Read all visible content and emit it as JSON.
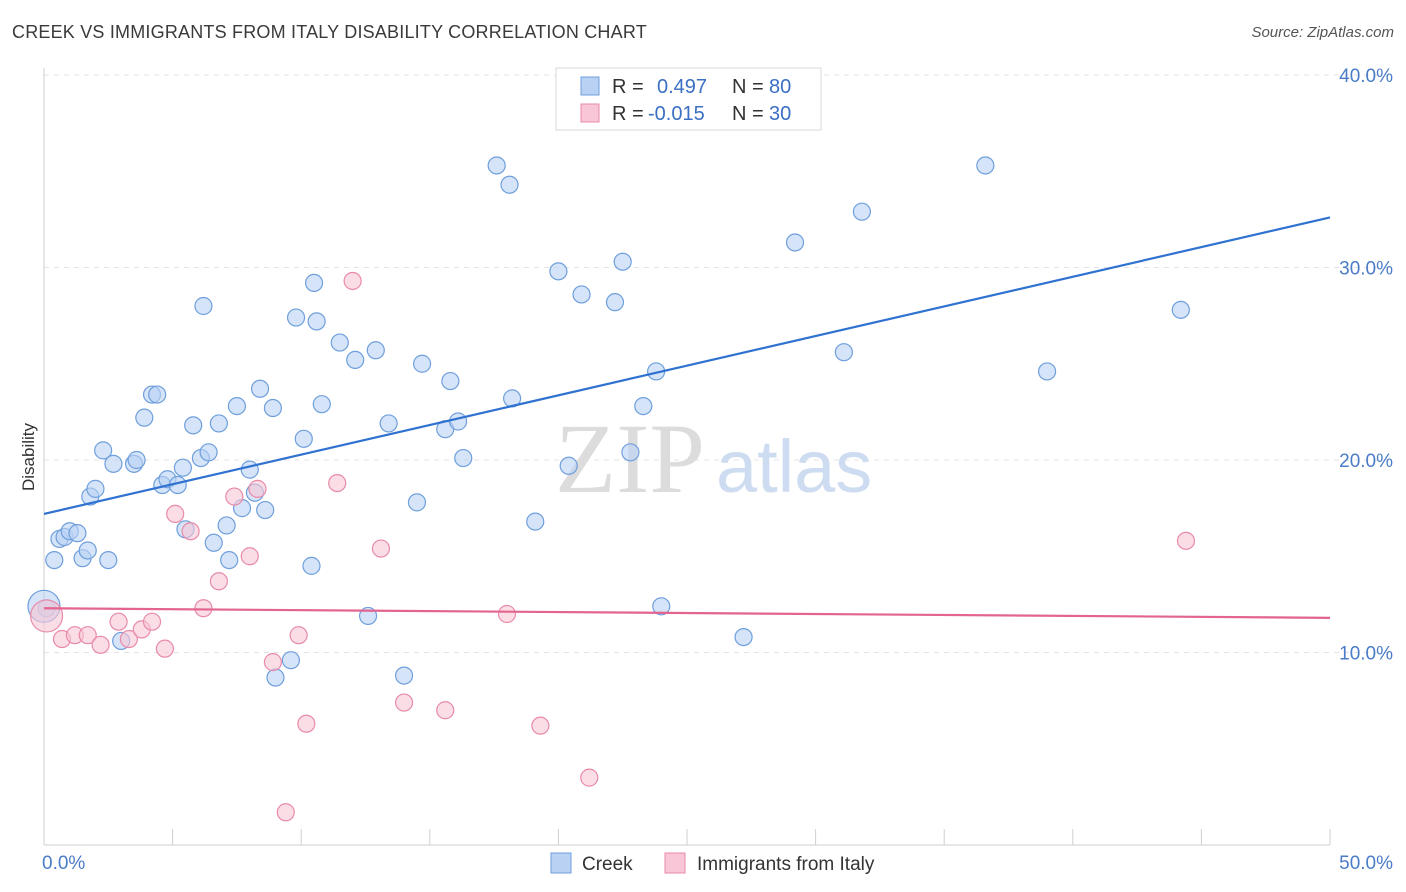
{
  "header": {
    "title": "CREEK VS IMMIGRANTS FROM ITALY DISABILITY CORRELATION CHART",
    "source": "Source: ZipAtlas.com"
  },
  "watermark": {
    "zip": "ZIP",
    "atlas": "atlas"
  },
  "colors": {
    "creek_fill": "#b9d2f3",
    "creek_stroke": "#6f9fdc",
    "creek_line": "#2f72d0",
    "italy_fill": "#f8c6d6",
    "italy_stroke": "#e88aaa",
    "italy_line": "#e2648f",
    "tick": "#4a7cc7"
  },
  "legend": {
    "rows": [
      {
        "r_label": "R =",
        "r_value": "0.497",
        "n_label": "N =",
        "n_value": "80"
      },
      {
        "r_label": "R =",
        "r_value": "-0.015",
        "n_label": "N =",
        "n_value": "30"
      }
    ]
  },
  "chart_data": {
    "type": "scatter",
    "title": "CREEK VS IMMIGRANTS FROM ITALY DISABILITY CORRELATION CHART",
    "ylabel": "Disability",
    "xlabel": "",
    "xlim": [
      0,
      50
    ],
    "ylim": [
      0,
      40
    ],
    "x_ticks": [
      "0.0%",
      "50.0%"
    ],
    "y_ticks": [
      {
        "value": 10,
        "label": "10.0%"
      },
      {
        "value": 20,
        "label": "20.0%"
      },
      {
        "value": 30,
        "label": "30.0%"
      },
      {
        "value": 40,
        "label": "40.0%"
      }
    ],
    "grid": "horizontal dashed",
    "legend_position": "top-center",
    "series": [
      {
        "name": "Creek",
        "trend": {
          "x": [
            0,
            50
          ],
          "y": [
            17.2,
            32.6
          ]
        },
        "points": [
          [
            0.1,
            12.3
          ],
          [
            0.4,
            14.8
          ],
          [
            0.6,
            15.9
          ],
          [
            0.8,
            16.0
          ],
          [
            1.0,
            16.3
          ],
          [
            1.3,
            16.2
          ],
          [
            1.5,
            14.9
          ],
          [
            1.7,
            15.3
          ],
          [
            1.8,
            18.1
          ],
          [
            2.0,
            18.5
          ],
          [
            2.3,
            20.5
          ],
          [
            2.5,
            14.8
          ],
          [
            2.7,
            19.8
          ],
          [
            3.0,
            10.6
          ],
          [
            3.5,
            19.8
          ],
          [
            3.6,
            20.0
          ],
          [
            3.9,
            22.2
          ],
          [
            4.2,
            23.4
          ],
          [
            4.4,
            23.4
          ],
          [
            4.6,
            18.7
          ],
          [
            4.8,
            19.0
          ],
          [
            5.2,
            18.7
          ],
          [
            5.4,
            19.6
          ],
          [
            5.5,
            16.4
          ],
          [
            5.8,
            21.8
          ],
          [
            6.1,
            20.1
          ],
          [
            6.2,
            28.0
          ],
          [
            6.4,
            20.4
          ],
          [
            6.6,
            15.7
          ],
          [
            6.8,
            21.9
          ],
          [
            7.1,
            16.6
          ],
          [
            7.2,
            14.8
          ],
          [
            7.5,
            22.8
          ],
          [
            7.7,
            17.5
          ],
          [
            8.0,
            19.5
          ],
          [
            8.2,
            18.3
          ],
          [
            8.4,
            23.7
          ],
          [
            8.6,
            17.4
          ],
          [
            8.9,
            22.7
          ],
          [
            9.0,
            8.7
          ],
          [
            9.6,
            9.6
          ],
          [
            9.8,
            27.4
          ],
          [
            10.1,
            21.1
          ],
          [
            10.4,
            14.5
          ],
          [
            10.5,
            29.2
          ],
          [
            10.6,
            27.2
          ],
          [
            10.8,
            22.9
          ],
          [
            11.5,
            26.1
          ],
          [
            12.1,
            25.2
          ],
          [
            12.6,
            11.9
          ],
          [
            12.9,
            25.7
          ],
          [
            13.4,
            21.9
          ],
          [
            14.0,
            8.8
          ],
          [
            14.5,
            17.8
          ],
          [
            14.7,
            25.0
          ],
          [
            15.6,
            21.6
          ],
          [
            15.8,
            24.1
          ],
          [
            16.1,
            22.0
          ],
          [
            16.3,
            20.1
          ],
          [
            17.6,
            35.3
          ],
          [
            18.1,
            34.3
          ],
          [
            18.2,
            23.2
          ],
          [
            19.1,
            16.8
          ],
          [
            20.0,
            29.8
          ],
          [
            20.4,
            19.7
          ],
          [
            20.9,
            28.6
          ],
          [
            22.2,
            28.2
          ],
          [
            22.5,
            30.3
          ],
          [
            22.8,
            20.4
          ],
          [
            23.3,
            22.8
          ],
          [
            23.8,
            24.6
          ],
          [
            24.0,
            12.4
          ],
          [
            27.2,
            10.8
          ],
          [
            29.2,
            31.3
          ],
          [
            31.1,
            25.6
          ],
          [
            31.8,
            32.9
          ],
          [
            36.6,
            35.3
          ],
          [
            39.0,
            24.6
          ],
          [
            44.2,
            27.8
          ],
          [
            0.0,
            12.4
          ]
        ]
      },
      {
        "name": "Immigrants from Italy",
        "trend": {
          "x": [
            0,
            50
          ],
          "y": [
            12.3,
            11.8
          ]
        },
        "points": [
          [
            0.1,
            11.9
          ],
          [
            0.7,
            10.7
          ],
          [
            1.2,
            10.9
          ],
          [
            1.7,
            10.9
          ],
          [
            2.2,
            10.4
          ],
          [
            2.9,
            11.6
          ],
          [
            3.3,
            10.7
          ],
          [
            3.8,
            11.2
          ],
          [
            4.2,
            11.6
          ],
          [
            4.7,
            10.2
          ],
          [
            5.1,
            17.2
          ],
          [
            5.7,
            16.3
          ],
          [
            6.2,
            12.3
          ],
          [
            6.8,
            13.7
          ],
          [
            7.4,
            18.1
          ],
          [
            8.0,
            15.0
          ],
          [
            8.3,
            18.5
          ],
          [
            8.9,
            9.5
          ],
          [
            9.4,
            1.7
          ],
          [
            9.9,
            10.9
          ],
          [
            10.2,
            6.3
          ],
          [
            11.4,
            18.8
          ],
          [
            12.0,
            29.3
          ],
          [
            13.1,
            15.4
          ],
          [
            14.0,
            7.4
          ],
          [
            15.6,
            7.0
          ],
          [
            18.0,
            12.0
          ],
          [
            19.3,
            6.2
          ],
          [
            21.2,
            3.5
          ],
          [
            44.4,
            15.8
          ]
        ]
      }
    ]
  }
}
